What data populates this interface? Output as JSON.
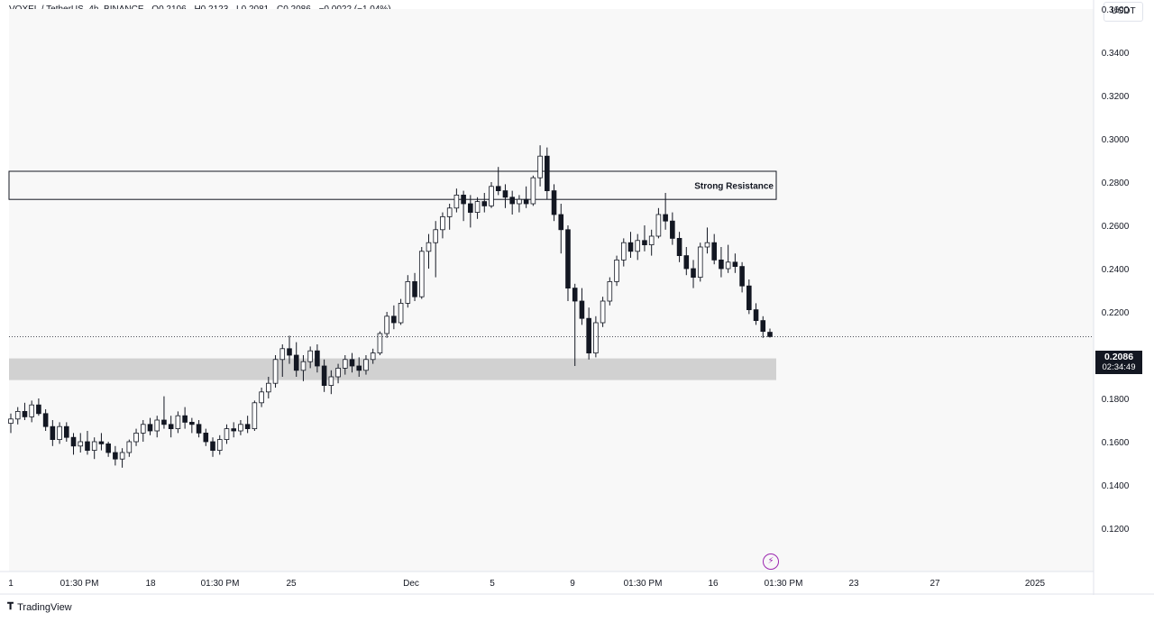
{
  "header": {
    "symbol": "VOXEL / TetherUS, 4h, BINANCE",
    "open": "O0.2106",
    "high": "H0.2123",
    "low": "L0.2081",
    "close": "C0.2086",
    "change": "−0.0022 (−1.04%)"
  },
  "currency_button": "USDT",
  "last_price": "0.2086",
  "countdown": "02:34:49",
  "brand": "TradingView",
  "chart_data": {
    "type": "candlestick",
    "y_range": [
      0.1,
      0.36
    ],
    "y_ticks": [
      "0.1200",
      "0.1400",
      "0.1600",
      "0.1800",
      "0.2000",
      "0.2200",
      "0.2400",
      "0.2600",
      "0.2800",
      "0.3000",
      "0.3200",
      "0.3400",
      "0.3600"
    ],
    "x_ticks": [
      "1",
      "01:30 PM",
      "18",
      "01:30 PM",
      "25",
      "Dec",
      "5",
      "9",
      "01:30 PM",
      "16",
      "01:30 PM",
      "23",
      "27",
      "2025"
    ],
    "annotations": [
      {
        "type": "box",
        "label": "Strong Resistance",
        "y_range": [
          0.272,
          0.285
        ]
      },
      {
        "type": "zone",
        "label": "",
        "y_range": [
          0.1885,
          0.1985
        ]
      }
    ],
    "candles": [
      [
        0.1685,
        0.173,
        0.164,
        0.1705
      ],
      [
        0.1705,
        0.176,
        0.168,
        0.174
      ],
      [
        0.174,
        0.178,
        0.17,
        0.1715
      ],
      [
        0.1715,
        0.179,
        0.169,
        0.177
      ],
      [
        0.177,
        0.18,
        0.172,
        0.173
      ],
      [
        0.173,
        0.175,
        0.165,
        0.167
      ],
      [
        0.167,
        0.17,
        0.158,
        0.161
      ],
      [
        0.161,
        0.169,
        0.159,
        0.167
      ],
      [
        0.167,
        0.169,
        0.16,
        0.162
      ],
      [
        0.162,
        0.164,
        0.154,
        0.158
      ],
      [
        0.158,
        0.164,
        0.155,
        0.16
      ],
      [
        0.16,
        0.165,
        0.154,
        0.156
      ],
      [
        0.156,
        0.162,
        0.152,
        0.16
      ],
      [
        0.16,
        0.164,
        0.156,
        0.159
      ],
      [
        0.159,
        0.16,
        0.153,
        0.155
      ],
      [
        0.155,
        0.158,
        0.149,
        0.152
      ],
      [
        0.152,
        0.157,
        0.148,
        0.155
      ],
      [
        0.155,
        0.161,
        0.153,
        0.16
      ],
      [
        0.16,
        0.166,
        0.158,
        0.164
      ],
      [
        0.164,
        0.17,
        0.16,
        0.168
      ],
      [
        0.168,
        0.171,
        0.163,
        0.165
      ],
      [
        0.165,
        0.172,
        0.162,
        0.17
      ],
      [
        0.17,
        0.181,
        0.166,
        0.168
      ],
      [
        0.168,
        0.172,
        0.162,
        0.166
      ],
      [
        0.166,
        0.174,
        0.164,
        0.172
      ],
      [
        0.172,
        0.176,
        0.166,
        0.169
      ],
      [
        0.169,
        0.171,
        0.164,
        0.168
      ],
      [
        0.168,
        0.17,
        0.162,
        0.164
      ],
      [
        0.164,
        0.166,
        0.158,
        0.16
      ],
      [
        0.16,
        0.162,
        0.153,
        0.156
      ],
      [
        0.156,
        0.163,
        0.154,
        0.161
      ],
      [
        0.161,
        0.168,
        0.159,
        0.166
      ],
      [
        0.166,
        0.169,
        0.162,
        0.165
      ],
      [
        0.165,
        0.17,
        0.163,
        0.168
      ],
      [
        0.168,
        0.172,
        0.164,
        0.166
      ],
      [
        0.166,
        0.179,
        0.165,
        0.178
      ],
      [
        0.178,
        0.185,
        0.176,
        0.183
      ],
      [
        0.183,
        0.19,
        0.18,
        0.187
      ],
      [
        0.187,
        0.2,
        0.185,
        0.198
      ],
      [
        0.198,
        0.205,
        0.19,
        0.203
      ],
      [
        0.203,
        0.209,
        0.196,
        0.2
      ],
      [
        0.2,
        0.206,
        0.19,
        0.193
      ],
      [
        0.193,
        0.2,
        0.188,
        0.197
      ],
      [
        0.197,
        0.204,
        0.194,
        0.202
      ],
      [
        0.202,
        0.205,
        0.192,
        0.195
      ],
      [
        0.195,
        0.198,
        0.183,
        0.186
      ],
      [
        0.186,
        0.193,
        0.182,
        0.19
      ],
      [
        0.19,
        0.196,
        0.187,
        0.194
      ],
      [
        0.194,
        0.2,
        0.191,
        0.198
      ],
      [
        0.198,
        0.201,
        0.192,
        0.195
      ],
      [
        0.195,
        0.199,
        0.19,
        0.193
      ],
      [
        0.193,
        0.2,
        0.191,
        0.198
      ],
      [
        0.198,
        0.203,
        0.196,
        0.201
      ],
      [
        0.201,
        0.211,
        0.2,
        0.21
      ],
      [
        0.21,
        0.22,
        0.208,
        0.218
      ],
      [
        0.218,
        0.223,
        0.212,
        0.215
      ],
      [
        0.215,
        0.226,
        0.214,
        0.224
      ],
      [
        0.224,
        0.237,
        0.222,
        0.234
      ],
      [
        0.234,
        0.238,
        0.225,
        0.227
      ],
      [
        0.227,
        0.25,
        0.226,
        0.248
      ],
      [
        0.248,
        0.256,
        0.24,
        0.252
      ],
      [
        0.252,
        0.262,
        0.236,
        0.258
      ],
      [
        0.258,
        0.266,
        0.254,
        0.264
      ],
      [
        0.264,
        0.27,
        0.258,
        0.268
      ],
      [
        0.268,
        0.277,
        0.266,
        0.274
      ],
      [
        0.274,
        0.276,
        0.262,
        0.27
      ],
      [
        0.27,
        0.274,
        0.259,
        0.266
      ],
      [
        0.266,
        0.273,
        0.263,
        0.271
      ],
      [
        0.271,
        0.275,
        0.266,
        0.269
      ],
      [
        0.269,
        0.28,
        0.268,
        0.278
      ],
      [
        0.278,
        0.287,
        0.274,
        0.276
      ],
      [
        0.276,
        0.279,
        0.268,
        0.273
      ],
      [
        0.273,
        0.276,
        0.265,
        0.27
      ],
      [
        0.27,
        0.274,
        0.266,
        0.272
      ],
      [
        0.272,
        0.278,
        0.268,
        0.27
      ],
      [
        0.27,
        0.283,
        0.269,
        0.282
      ],
      [
        0.282,
        0.297,
        0.278,
        0.292
      ],
      [
        0.292,
        0.296,
        0.272,
        0.276
      ],
      [
        0.276,
        0.279,
        0.262,
        0.265
      ],
      [
        0.265,
        0.27,
        0.247,
        0.258
      ],
      [
        0.258,
        0.26,
        0.225,
        0.231
      ],
      [
        0.231,
        0.233,
        0.195,
        0.225
      ],
      [
        0.225,
        0.231,
        0.214,
        0.217
      ],
      [
        0.217,
        0.222,
        0.198,
        0.201
      ],
      [
        0.201,
        0.218,
        0.199,
        0.215
      ],
      [
        0.215,
        0.227,
        0.213,
        0.225
      ],
      [
        0.225,
        0.236,
        0.223,
        0.234
      ],
      [
        0.234,
        0.246,
        0.232,
        0.244
      ],
      [
        0.244,
        0.254,
        0.241,
        0.252
      ],
      [
        0.252,
        0.257,
        0.245,
        0.248
      ],
      [
        0.248,
        0.256,
        0.244,
        0.253
      ],
      [
        0.253,
        0.26,
        0.248,
        0.251
      ],
      [
        0.251,
        0.258,
        0.246,
        0.255
      ],
      [
        0.255,
        0.268,
        0.254,
        0.265
      ],
      [
        0.265,
        0.275,
        0.258,
        0.262
      ],
      [
        0.262,
        0.266,
        0.251,
        0.254
      ],
      [
        0.254,
        0.257,
        0.243,
        0.246
      ],
      [
        0.246,
        0.25,
        0.237,
        0.24
      ],
      [
        0.24,
        0.244,
        0.231,
        0.236
      ],
      [
        0.236,
        0.252,
        0.234,
        0.25
      ],
      [
        0.25,
        0.259,
        0.247,
        0.252
      ],
      [
        0.252,
        0.256,
        0.242,
        0.244
      ],
      [
        0.244,
        0.25,
        0.236,
        0.24
      ],
      [
        0.24,
        0.251,
        0.238,
        0.243
      ],
      [
        0.243,
        0.247,
        0.238,
        0.241
      ],
      [
        0.241,
        0.243,
        0.229,
        0.232
      ],
      [
        0.232,
        0.235,
        0.219,
        0.221
      ],
      [
        0.221,
        0.224,
        0.214,
        0.216
      ],
      [
        0.216,
        0.218,
        0.208,
        0.211
      ],
      [
        0.2106,
        0.2123,
        0.2081,
        0.2086
      ]
    ]
  }
}
